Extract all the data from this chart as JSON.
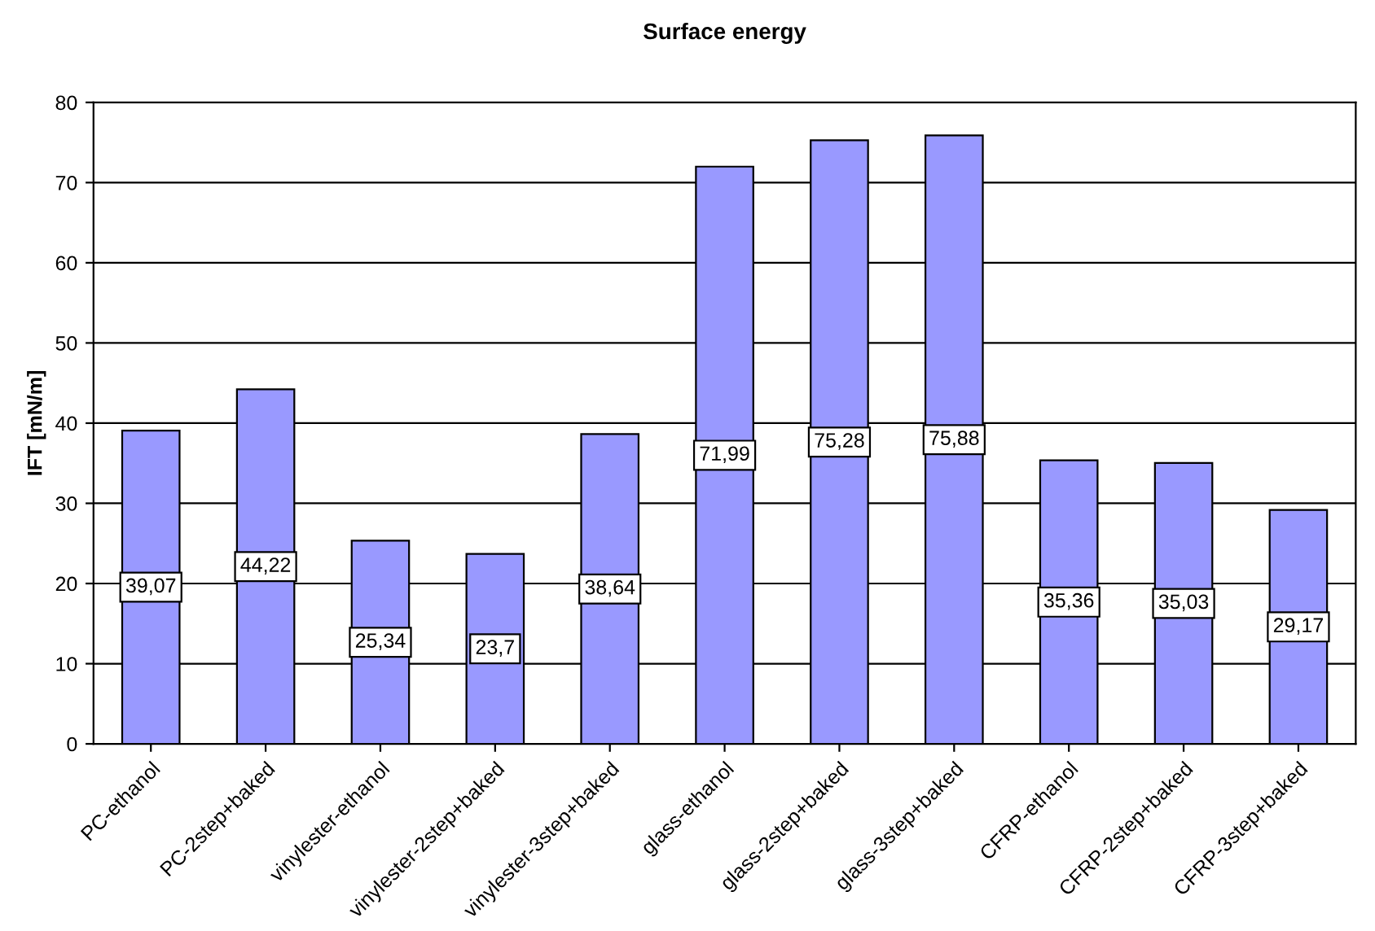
{
  "chart_data": {
    "type": "bar",
    "title": "Surface energy",
    "ylabel": "IFT [mN/m]",
    "categories": [
      "PC-ethanol",
      "PC-2step+baked",
      "vinylester-ethanol",
      "vinylester-2step+baked",
      "vinylester-3step+baked",
      "glass-ethanol",
      "glass-2step+baked",
      "glass-3step+baked",
      "CFRP-ethanol",
      "CFRP-2step+baked",
      "CFRP-3step+baked"
    ],
    "values": [
      39.07,
      44.22,
      25.34,
      23.7,
      38.64,
      71.99,
      75.28,
      75.88,
      35.36,
      35.03,
      29.17
    ],
    "value_labels": [
      "39,07",
      "44,22",
      "25,34",
      "23,7",
      "38,64",
      "71,99",
      "75,28",
      "75,88",
      "35,36",
      "35,03",
      "29,17"
    ],
    "color": "#9999ff",
    "ylim": [
      0,
      80
    ],
    "yticks": [
      0,
      10,
      20,
      30,
      40,
      50,
      60,
      70,
      80
    ],
    "grid": "y",
    "legend": false
  }
}
